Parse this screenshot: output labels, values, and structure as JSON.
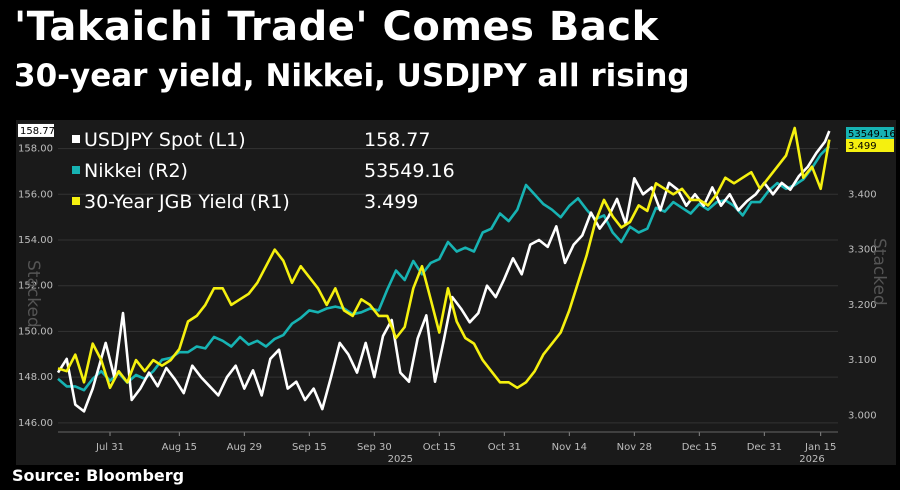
{
  "header": {
    "title": "'Takaichi Trade' Comes Back",
    "subtitle": "30-year yield, Nikkei, USDJPY all rising"
  },
  "footer": {
    "source": "Source: Bloomberg"
  },
  "chart_data": {
    "type": "line",
    "x_ticks": [
      "Jul 31",
      "Aug 15",
      "Aug 29",
      "Sep 15",
      "Sep 30",
      "Oct 15",
      "Oct 31",
      "Nov 14",
      "Nov 28",
      "Dec 15",
      "Dec 31",
      "Jan 15"
    ],
    "year_labels": [
      "2025",
      "2026"
    ],
    "left_axis": {
      "ticks": [
        "146.00",
        "148.00",
        "150.00",
        "152.00",
        "154.00",
        "156.00",
        "158.00"
      ],
      "ylim": [
        145.6,
        158.9
      ],
      "label": "Stacked"
    },
    "right_axis": {
      "ticks": [
        "3.000",
        "3.100",
        "3.200",
        "3.300",
        "3.400"
      ],
      "ylim": [
        2.97,
        3.52
      ],
      "label": "Stacked"
    },
    "legend_placement": "top-left",
    "series": [
      {
        "name": "USDJPY Spot (L1)",
        "last": "158.77",
        "axis": "L1",
        "color": "#ffffff",
        "last_tag": "158.77",
        "points": [
          [
            0,
            148.2
          ],
          [
            2,
            148.8
          ],
          [
            4,
            146.8
          ],
          [
            6,
            146.5
          ],
          [
            8,
            147.5
          ],
          [
            11,
            149.5
          ],
          [
            13,
            148.0
          ],
          [
            15,
            150.8
          ],
          [
            17,
            147.0
          ],
          [
            19,
            147.5
          ],
          [
            21,
            148.2
          ],
          [
            23,
            147.6
          ],
          [
            25,
            148.4
          ],
          [
            27,
            147.9
          ],
          [
            29,
            147.3
          ],
          [
            31,
            148.5
          ],
          [
            33,
            148.0
          ],
          [
            35,
            147.6
          ],
          [
            37,
            147.2
          ],
          [
            39,
            148.0
          ],
          [
            41,
            148.5
          ],
          [
            43,
            147.5
          ],
          [
            45,
            148.3
          ],
          [
            47,
            147.2
          ],
          [
            49,
            148.8
          ],
          [
            51,
            149.2
          ],
          [
            53,
            147.5
          ],
          [
            55,
            147.8
          ],
          [
            57,
            147.0
          ],
          [
            59,
            147.5
          ],
          [
            61,
            146.6
          ],
          [
            63,
            148.0
          ],
          [
            65,
            149.5
          ],
          [
            67,
            149.0
          ],
          [
            69,
            148.2
          ],
          [
            71,
            149.5
          ],
          [
            73,
            148.0
          ],
          [
            75,
            149.8
          ],
          [
            77,
            150.5
          ],
          [
            79,
            148.2
          ],
          [
            81,
            147.8
          ],
          [
            83,
            149.7
          ],
          [
            85,
            150.7
          ],
          [
            87,
            147.8
          ],
          [
            89,
            149.6
          ],
          [
            91,
            151.5
          ],
          [
            93,
            151.0
          ],
          [
            95,
            150.4
          ],
          [
            97,
            150.8
          ],
          [
            99,
            152.0
          ],
          [
            101,
            151.5
          ],
          [
            103,
            152.3
          ],
          [
            105,
            153.2
          ],
          [
            107,
            152.5
          ],
          [
            109,
            153.8
          ],
          [
            111,
            154.0
          ],
          [
            113,
            153.7
          ],
          [
            115,
            154.6
          ],
          [
            117,
            153.0
          ],
          [
            119,
            153.8
          ],
          [
            121,
            154.2
          ],
          [
            123,
            155.2
          ],
          [
            125,
            154.5
          ],
          [
            127,
            155.0
          ],
          [
            129,
            155.8
          ],
          [
            131,
            154.7
          ],
          [
            133,
            156.7
          ],
          [
            135,
            156.0
          ],
          [
            137,
            156.3
          ],
          [
            139,
            155.3
          ],
          [
            141,
            156.5
          ],
          [
            143,
            156.2
          ],
          [
            145,
            155.5
          ],
          [
            147,
            156.0
          ],
          [
            149,
            155.5
          ],
          [
            151,
            156.3
          ],
          [
            153,
            155.5
          ],
          [
            155,
            156.0
          ],
          [
            157,
            155.3
          ],
          [
            159,
            155.7
          ],
          [
            161,
            156.0
          ],
          [
            163,
            156.5
          ],
          [
            165,
            156.0
          ],
          [
            167,
            156.5
          ],
          [
            169,
            156.2
          ],
          [
            171,
            156.8
          ],
          [
            173,
            157.2
          ],
          [
            175,
            157.8
          ],
          [
            177,
            158.3
          ],
          [
            178,
            158.77
          ]
        ]
      },
      {
        "name": "Nikkei (R2)",
        "last": "53549.16",
        "axis": "R2",
        "color": "#17b3b3",
        "last_tag": "53549.16",
        "points": [
          [
            0,
            41300
          ],
          [
            2,
            40900
          ],
          [
            4,
            40900
          ],
          [
            6,
            40700
          ],
          [
            8,
            41300
          ],
          [
            10,
            41700
          ],
          [
            12,
            41200
          ],
          [
            14,
            41600
          ],
          [
            16,
            41100
          ],
          [
            18,
            41500
          ],
          [
            20,
            41300
          ],
          [
            22,
            41700
          ],
          [
            24,
            42300
          ],
          [
            26,
            42400
          ],
          [
            28,
            42700
          ],
          [
            30,
            42700
          ],
          [
            32,
            43000
          ],
          [
            34,
            42900
          ],
          [
            36,
            43500
          ],
          [
            38,
            43300
          ],
          [
            40,
            43000
          ],
          [
            42,
            43500
          ],
          [
            44,
            43100
          ],
          [
            46,
            43300
          ],
          [
            48,
            43000
          ],
          [
            50,
            43400
          ],
          [
            52,
            43600
          ],
          [
            54,
            44200
          ],
          [
            56,
            44500
          ],
          [
            58,
            44900
          ],
          [
            60,
            44800
          ],
          [
            62,
            45000
          ],
          [
            64,
            45100
          ],
          [
            66,
            45000
          ],
          [
            68,
            44700
          ],
          [
            70,
            44800
          ],
          [
            72,
            45000
          ],
          [
            74,
            44900
          ],
          [
            76,
            46000
          ],
          [
            78,
            47000
          ],
          [
            80,
            46500
          ],
          [
            82,
            47500
          ],
          [
            84,
            46800
          ],
          [
            86,
            47400
          ],
          [
            88,
            47600
          ],
          [
            90,
            48500
          ],
          [
            92,
            48000
          ],
          [
            94,
            48200
          ],
          [
            96,
            48000
          ],
          [
            98,
            49000
          ],
          [
            100,
            49200
          ],
          [
            102,
            50000
          ],
          [
            104,
            49600
          ],
          [
            106,
            50200
          ],
          [
            108,
            51500
          ],
          [
            110,
            51000
          ],
          [
            112,
            50500
          ],
          [
            114,
            50200
          ],
          [
            116,
            49800
          ],
          [
            118,
            50400
          ],
          [
            120,
            50800
          ],
          [
            122,
            50200
          ],
          [
            124,
            49700
          ],
          [
            126,
            49900
          ],
          [
            128,
            49000
          ],
          [
            130,
            48500
          ],
          [
            132,
            49300
          ],
          [
            134,
            49000
          ],
          [
            136,
            49200
          ],
          [
            138,
            50300
          ],
          [
            140,
            50100
          ],
          [
            142,
            50600
          ],
          [
            144,
            50300
          ],
          [
            146,
            50000
          ],
          [
            148,
            50500
          ],
          [
            150,
            50200
          ],
          [
            152,
            50600
          ],
          [
            154,
            50700
          ],
          [
            156,
            50400
          ],
          [
            158,
            49900
          ],
          [
            160,
            50600
          ],
          [
            162,
            50600
          ],
          [
            164,
            51200
          ],
          [
            166,
            51600
          ],
          [
            168,
            51300
          ],
          [
            170,
            51500
          ],
          [
            172,
            51800
          ],
          [
            174,
            52400
          ],
          [
            176,
            53100
          ],
          [
            178,
            53549.16
          ]
        ]
      },
      {
        "name": "30-Year JGB Yield (R1)",
        "last": "3.499",
        "axis": "R1",
        "color": "#f5f00f",
        "last_tag": "3.499",
        "points": [
          [
            0,
            3.085
          ],
          [
            2,
            3.08
          ],
          [
            4,
            3.11
          ],
          [
            6,
            3.06
          ],
          [
            8,
            3.13
          ],
          [
            10,
            3.1
          ],
          [
            12,
            3.05
          ],
          [
            14,
            3.08
          ],
          [
            16,
            3.06
          ],
          [
            18,
            3.1
          ],
          [
            20,
            3.08
          ],
          [
            22,
            3.1
          ],
          [
            24,
            3.09
          ],
          [
            26,
            3.1
          ],
          [
            28,
            3.12
          ],
          [
            30,
            3.17
          ],
          [
            32,
            3.18
          ],
          [
            34,
            3.2
          ],
          [
            36,
            3.23
          ],
          [
            38,
            3.23
          ],
          [
            40,
            3.2
          ],
          [
            42,
            3.21
          ],
          [
            44,
            3.22
          ],
          [
            46,
            3.24
          ],
          [
            48,
            3.27
          ],
          [
            50,
            3.3
          ],
          [
            52,
            3.28
          ],
          [
            54,
            3.24
          ],
          [
            56,
            3.27
          ],
          [
            58,
            3.25
          ],
          [
            60,
            3.23
          ],
          [
            62,
            3.2
          ],
          [
            64,
            3.23
          ],
          [
            66,
            3.19
          ],
          [
            68,
            3.18
          ],
          [
            70,
            3.21
          ],
          [
            72,
            3.2
          ],
          [
            74,
            3.18
          ],
          [
            76,
            3.18
          ],
          [
            78,
            3.14
          ],
          [
            80,
            3.16
          ],
          [
            82,
            3.23
          ],
          [
            84,
            3.27
          ],
          [
            86,
            3.21
          ],
          [
            88,
            3.15
          ],
          [
            90,
            3.23
          ],
          [
            92,
            3.17
          ],
          [
            94,
            3.14
          ],
          [
            96,
            3.13
          ],
          [
            98,
            3.1
          ],
          [
            100,
            3.08
          ],
          [
            102,
            3.06
          ],
          [
            104,
            3.06
          ],
          [
            106,
            3.05
          ],
          [
            108,
            3.06
          ],
          [
            110,
            3.08
          ],
          [
            112,
            3.11
          ],
          [
            114,
            3.13
          ],
          [
            116,
            3.15
          ],
          [
            118,
            3.19
          ],
          [
            120,
            3.24
          ],
          [
            122,
            3.29
          ],
          [
            124,
            3.35
          ],
          [
            126,
            3.39
          ],
          [
            128,
            3.36
          ],
          [
            130,
            3.34
          ],
          [
            132,
            3.35
          ],
          [
            134,
            3.38
          ],
          [
            136,
            3.37
          ],
          [
            138,
            3.42
          ],
          [
            140,
            3.41
          ],
          [
            142,
            3.4
          ],
          [
            144,
            3.41
          ],
          [
            146,
            3.39
          ],
          [
            148,
            3.39
          ],
          [
            150,
            3.38
          ],
          [
            152,
            3.4
          ],
          [
            154,
            3.43
          ],
          [
            156,
            3.42
          ],
          [
            158,
            3.43
          ],
          [
            160,
            3.44
          ],
          [
            162,
            3.41
          ],
          [
            164,
            3.43
          ],
          [
            166,
            3.45
          ],
          [
            168,
            3.47
          ],
          [
            170,
            3.52
          ],
          [
            172,
            3.43
          ],
          [
            174,
            3.45
          ],
          [
            176,
            3.41
          ],
          [
            178,
            3.499
          ]
        ]
      }
    ]
  }
}
